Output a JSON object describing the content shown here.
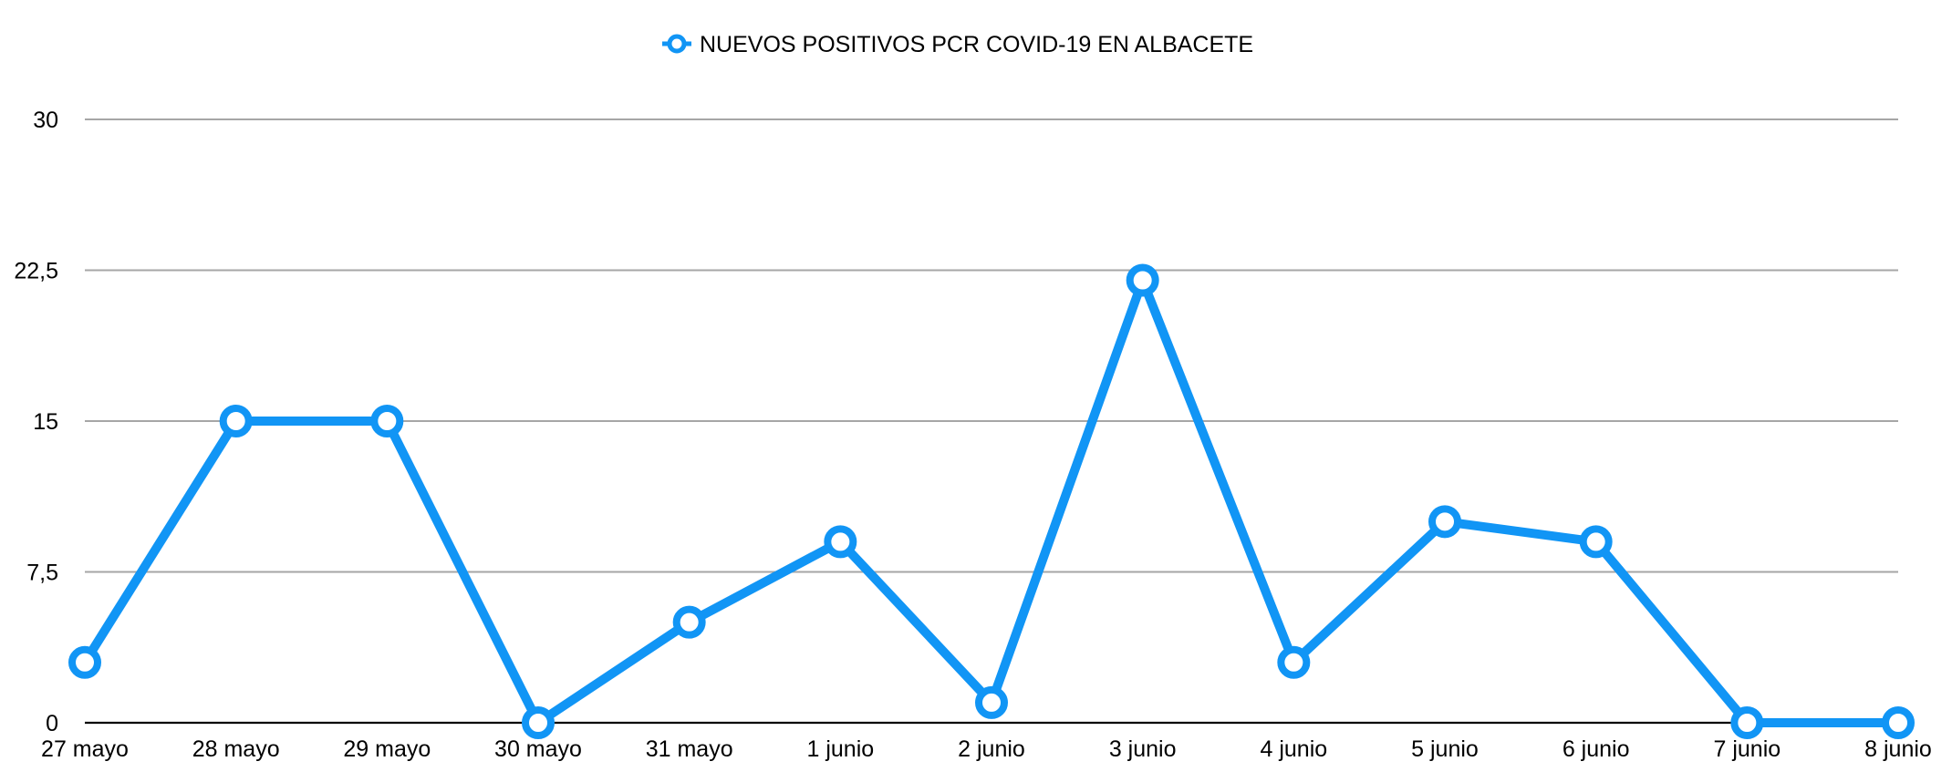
{
  "chart_data": {
    "type": "line",
    "title": "",
    "xlabel": "",
    "ylabel": "",
    "categories": [
      "27 mayo",
      "28 mayo",
      "29 mayo",
      "30 mayo",
      "31 mayo",
      "1 junio",
      "2 junio",
      "3 junio",
      "4 junio",
      "5 junio",
      "6 junio",
      "7 junio",
      "8 junio"
    ],
    "series": [
      {
        "name": "NUEVOS POSITIVOS PCR COVID-19 EN ALBACETE",
        "values": [
          3,
          15,
          15,
          0,
          5,
          9,
          1,
          22,
          3,
          10,
          9,
          0,
          0
        ],
        "color": "#1195F5"
      }
    ],
    "ylim": [
      0,
      30
    ],
    "yticks": [
      0,
      7.5,
      15,
      22.5,
      30
    ],
    "ytick_labels": [
      "0",
      "7,5",
      "15",
      "22,5",
      "30"
    ],
    "grid": true,
    "legend_position": "top-center"
  }
}
